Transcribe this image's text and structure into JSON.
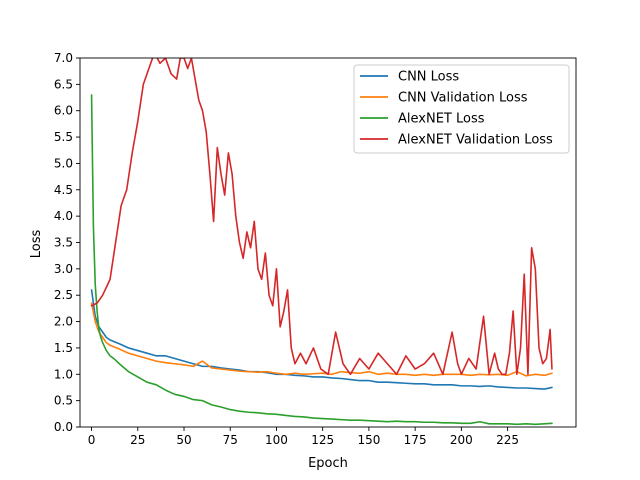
{
  "chart_data": {
    "type": "line",
    "title": "",
    "xlabel": "Epoch",
    "ylabel": "Loss",
    "xlim": [
      -6.25,
      262
    ],
    "ylim": [
      0,
      7
    ],
    "x_ticks": [
      0,
      25,
      50,
      75,
      100,
      125,
      150,
      175,
      200,
      225
    ],
    "y_ticks": [
      0.0,
      0.5,
      1.0,
      1.5,
      2.0,
      2.5,
      3.0,
      3.5,
      4.0,
      4.5,
      5.0,
      5.5,
      6.0,
      6.5,
      7.0
    ],
    "y_tick_labels": [
      "0.0",
      "0.5",
      "1.0",
      "1.5",
      "2.0",
      "2.5",
      "3.0",
      "3.5",
      "4.0",
      "4.5",
      "5.0",
      "5.5",
      "6.0",
      "6.5",
      "7.0"
    ],
    "x_tick_labels": [
      "0",
      "25",
      "50",
      "75",
      "100",
      "125",
      "150",
      "175",
      "200",
      "225"
    ],
    "grid": false,
    "legend_position": "top-right",
    "series": [
      {
        "name": "CNN Loss",
        "color": "#1f77b4",
        "x": [
          0,
          2,
          4,
          6,
          8,
          10,
          15,
          20,
          25,
          30,
          35,
          40,
          45,
          50,
          55,
          60,
          65,
          70,
          75,
          80,
          85,
          90,
          95,
          100,
          105,
          110,
          115,
          120,
          125,
          130,
          135,
          140,
          145,
          150,
          155,
          160,
          165,
          170,
          175,
          180,
          185,
          190,
          195,
          200,
          205,
          210,
          215,
          220,
          225,
          230,
          235,
          240,
          245,
          249
        ],
        "y": [
          2.6,
          2.1,
          1.9,
          1.8,
          1.7,
          1.65,
          1.58,
          1.5,
          1.45,
          1.4,
          1.35,
          1.35,
          1.3,
          1.25,
          1.2,
          1.15,
          1.15,
          1.12,
          1.1,
          1.08,
          1.05,
          1.05,
          1.03,
          1.0,
          1.0,
          0.98,
          0.97,
          0.95,
          0.95,
          0.93,
          0.92,
          0.9,
          0.88,
          0.88,
          0.85,
          0.85,
          0.84,
          0.83,
          0.82,
          0.82,
          0.8,
          0.8,
          0.8,
          0.78,
          0.78,
          0.77,
          0.78,
          0.76,
          0.75,
          0.74,
          0.74,
          0.73,
          0.72,
          0.75
        ]
      },
      {
        "name": "CNN Validation Loss",
        "color": "#ff7f0e",
        "x": [
          0,
          2,
          4,
          6,
          8,
          10,
          15,
          20,
          25,
          30,
          35,
          40,
          45,
          50,
          55,
          60,
          65,
          70,
          75,
          80,
          85,
          90,
          95,
          100,
          105,
          110,
          115,
          120,
          125,
          130,
          135,
          140,
          145,
          150,
          155,
          160,
          165,
          170,
          175,
          180,
          185,
          190,
          195,
          200,
          205,
          210,
          215,
          220,
          225,
          230,
          235,
          240,
          245,
          249
        ],
        "y": [
          2.35,
          2.0,
          1.8,
          1.7,
          1.6,
          1.55,
          1.48,
          1.4,
          1.35,
          1.3,
          1.25,
          1.22,
          1.2,
          1.18,
          1.15,
          1.25,
          1.12,
          1.1,
          1.08,
          1.06,
          1.05,
          1.04,
          1.05,
          1.02,
          1.0,
          1.02,
          1.0,
          1.01,
          1.02,
          1.0,
          1.05,
          1.03,
          1.02,
          1.05,
          1.0,
          1.02,
          1.0,
          1.0,
          0.98,
          1.0,
          0.98,
          1.0,
          1.0,
          1.0,
          0.98,
          1.0,
          0.99,
          1.0,
          0.98,
          1.05,
          0.97,
          1.0,
          0.98,
          1.02
        ]
      },
      {
        "name": "AlexNET Loss",
        "color": "#2ca02c",
        "x": [
          0,
          1,
          2,
          3,
          4,
          5,
          6,
          8,
          10,
          12,
          15,
          20,
          25,
          30,
          35,
          40,
          45,
          50,
          55,
          60,
          65,
          70,
          75,
          80,
          85,
          90,
          95,
          100,
          105,
          110,
          115,
          120,
          125,
          130,
          135,
          140,
          145,
          150,
          155,
          160,
          165,
          170,
          175,
          180,
          185,
          190,
          195,
          200,
          205,
          210,
          215,
          220,
          225,
          230,
          235,
          240,
          245,
          249
        ],
        "y": [
          6.3,
          3.8,
          2.7,
          2.2,
          1.85,
          1.7,
          1.6,
          1.45,
          1.35,
          1.3,
          1.2,
          1.05,
          0.95,
          0.85,
          0.8,
          0.7,
          0.62,
          0.58,
          0.52,
          0.5,
          0.42,
          0.38,
          0.33,
          0.3,
          0.28,
          0.27,
          0.25,
          0.24,
          0.22,
          0.2,
          0.19,
          0.17,
          0.16,
          0.15,
          0.14,
          0.13,
          0.13,
          0.12,
          0.11,
          0.1,
          0.11,
          0.1,
          0.1,
          0.09,
          0.09,
          0.08,
          0.08,
          0.07,
          0.07,
          0.1,
          0.06,
          0.06,
          0.06,
          0.05,
          0.06,
          0.05,
          0.06,
          0.07
        ]
      },
      {
        "name": "AlexNET Validation Loss",
        "color": "#d62728",
        "x": [
          0,
          3,
          6,
          10,
          13,
          16,
          19,
          22,
          25,
          28,
          31,
          34,
          37,
          40,
          43,
          46,
          48,
          50,
          52,
          54,
          56,
          58,
          60,
          62,
          64,
          66,
          68,
          70,
          72,
          74,
          76,
          78,
          80,
          82,
          84,
          86,
          88,
          90,
          92,
          94,
          96,
          98,
          100,
          102,
          104,
          106,
          108,
          110,
          113,
          116,
          120,
          124,
          128,
          132,
          136,
          140,
          145,
          150,
          155,
          160,
          165,
          170,
          175,
          180,
          185,
          190,
          195,
          198,
          200,
          204,
          208,
          212,
          215,
          218,
          220,
          222,
          224,
          226,
          228,
          230,
          232,
          234,
          236,
          238,
          240,
          242,
          244,
          246,
          248,
          249
        ],
        "y": [
          2.3,
          2.35,
          2.5,
          2.8,
          3.5,
          4.2,
          4.5,
          5.2,
          5.8,
          6.5,
          6.8,
          7.1,
          6.9,
          7.0,
          6.7,
          6.6,
          7.0,
          7.0,
          6.8,
          7.0,
          6.6,
          6.2,
          6.0,
          5.6,
          4.8,
          3.9,
          5.3,
          4.8,
          4.4,
          5.2,
          4.8,
          4.0,
          3.5,
          3.2,
          3.7,
          3.4,
          3.9,
          3.0,
          2.8,
          3.3,
          2.5,
          2.3,
          3.0,
          1.9,
          2.2,
          2.6,
          1.5,
          1.2,
          1.4,
          1.2,
          1.5,
          1.1,
          1.0,
          1.8,
          1.2,
          1.0,
          1.3,
          1.1,
          1.4,
          1.2,
          1.0,
          1.35,
          1.1,
          1.2,
          1.4,
          1.0,
          1.8,
          1.2,
          1.0,
          1.3,
          1.1,
          2.1,
          1.0,
          1.4,
          1.1,
          1.0,
          1.0,
          1.4,
          2.2,
          1.0,
          1.5,
          2.9,
          1.0,
          3.4,
          3.0,
          1.5,
          1.2,
          1.3,
          1.85,
          1.1
        ]
      }
    ]
  }
}
